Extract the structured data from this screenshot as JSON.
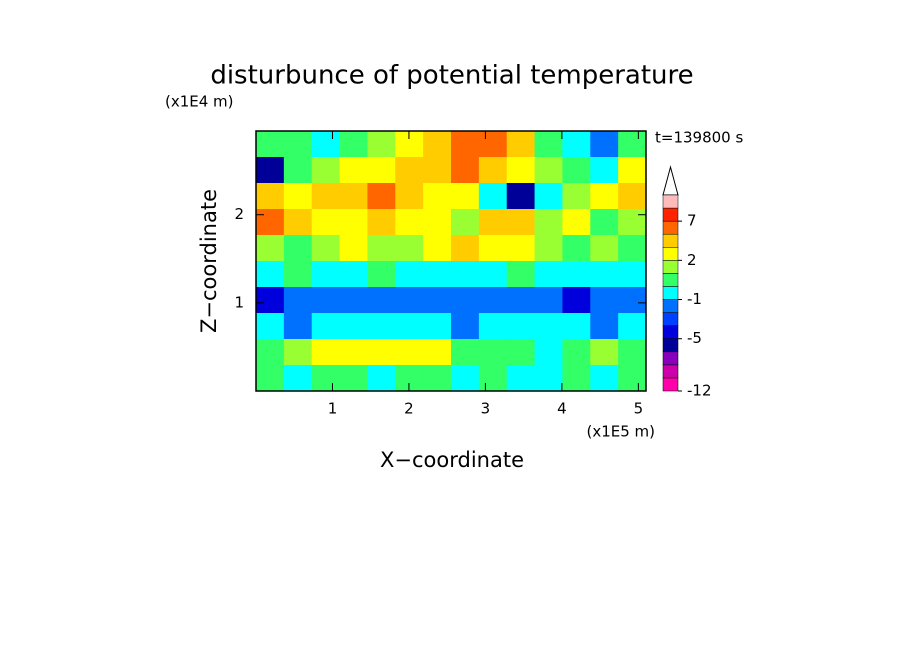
{
  "chart_data": {
    "type": "contour",
    "title": "disturbunce of potential temperature",
    "y_unit": "(x1E4 m)",
    "x_unit": "(x1E5 m)",
    "time_label": "t=139800 s",
    "x_label": "X−coordinate",
    "y_label": "Z−coordinate",
    "xlim": [
      0,
      5.1
    ],
    "ylim": [
      0,
      2.95
    ],
    "xticks": [
      1,
      2,
      3,
      4,
      5
    ],
    "yticks": [
      1,
      2
    ],
    "z": [
      [
        0.5,
        0.5,
        -0.5,
        0.5,
        1.5,
        2.5,
        4,
        5.5,
        5,
        3,
        0.5,
        -0.5,
        -2,
        0.5
      ],
      [
        -5.5,
        0.5,
        1.5,
        2.5,
        2.5,
        4,
        4,
        5.5,
        4,
        2.5,
        1.5,
        0.5,
        -0.5,
        2.5
      ],
      [
        4,
        2.5,
        4,
        4,
        5.5,
        4,
        2.5,
        2.5,
        -0.5,
        -5.5,
        -0.5,
        1.5,
        2.5,
        4
      ],
      [
        5.5,
        4,
        2.5,
        2.5,
        4,
        2.5,
        2.5,
        1.5,
        4,
        4,
        1.5,
        2.5,
        0.5,
        1.5
      ],
      [
        1.5,
        0.5,
        1.5,
        2.5,
        1.5,
        1.5,
        2.5,
        4,
        2.5,
        2.5,
        1.5,
        0.5,
        1.5,
        0.5
      ],
      [
        -0.5,
        0.5,
        -0.5,
        -0.5,
        0.5,
        -0.5,
        -0.5,
        -0.5,
        -0.5,
        0.5,
        -0.5,
        -0.5,
        -0.5,
        -0.5
      ],
      [
        -4.5,
        -2,
        -2,
        -2,
        -2,
        -2,
        -2,
        -2,
        -2,
        -2,
        -2,
        -4.5,
        -2,
        -2
      ],
      [
        -0.5,
        -2,
        -0.5,
        -0.5,
        -0.5,
        -0.5,
        -0.5,
        -2,
        -0.5,
        -0.5,
        -0.5,
        -0.5,
        -2,
        -0.5
      ],
      [
        0.5,
        1.5,
        2.5,
        2.5,
        2.5,
        2.5,
        2.5,
        0.5,
        0.5,
        0.5,
        -0.5,
        0.5,
        1.5,
        0.5
      ],
      [
        0.5,
        -0.5,
        0.5,
        0.5,
        -0.5,
        0.5,
        0.5,
        -0.5,
        0.5,
        -0.5,
        -0.5,
        0.5,
        -0.5,
        0.5
      ]
    ],
    "colorbar": {
      "levels": [
        -12,
        -10,
        -8,
        -6,
        -5,
        -4,
        -3,
        -1,
        0,
        1,
        2,
        3,
        5,
        7,
        9,
        11
      ],
      "colors": [
        "#ff00aa",
        "#cc00aa",
        "#8800bb",
        "#000099",
        "#0000dd",
        "#0040ff",
        "#0070ff",
        "#00ffff",
        "#33ff66",
        "#99ff33",
        "#ffff00",
        "#ffcc00",
        "#ff6600",
        "#ff2200",
        "#ffbbbb"
      ],
      "ticks": [
        -12,
        -5,
        -1,
        2,
        7
      ]
    }
  }
}
